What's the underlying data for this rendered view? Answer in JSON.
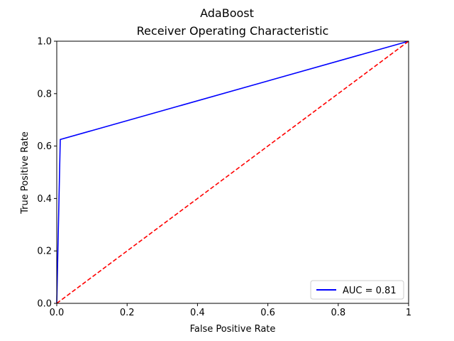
{
  "chart_data": {
    "type": "line",
    "suptitle": "AdaBoost",
    "title": "Receiver Operating Characteristic",
    "xlabel": "False Positive Rate",
    "ylabel": "True Positive Rate",
    "xlim": [
      0,
      1
    ],
    "ylim": [
      0,
      1
    ],
    "xticks": [
      "0.0",
      "0.2",
      "0.4",
      "0.6",
      "0.8",
      "1"
    ],
    "yticks": [
      "0.0",
      "0.2",
      "0.4",
      "0.6",
      "0.8",
      "1.0"
    ],
    "grid": false,
    "legend_position": "lower-right",
    "series": [
      {
        "name": "AUC = 0.81",
        "style": "solid",
        "color": "#0000ff",
        "x": [
          0.0,
          0.01,
          1.0
        ],
        "y": [
          0.0,
          0.625,
          1.0
        ]
      },
      {
        "style": "dashed",
        "color": "#ff0000",
        "x": [
          0.0,
          1.0
        ],
        "y": [
          0.0,
          1.0
        ]
      }
    ]
  }
}
